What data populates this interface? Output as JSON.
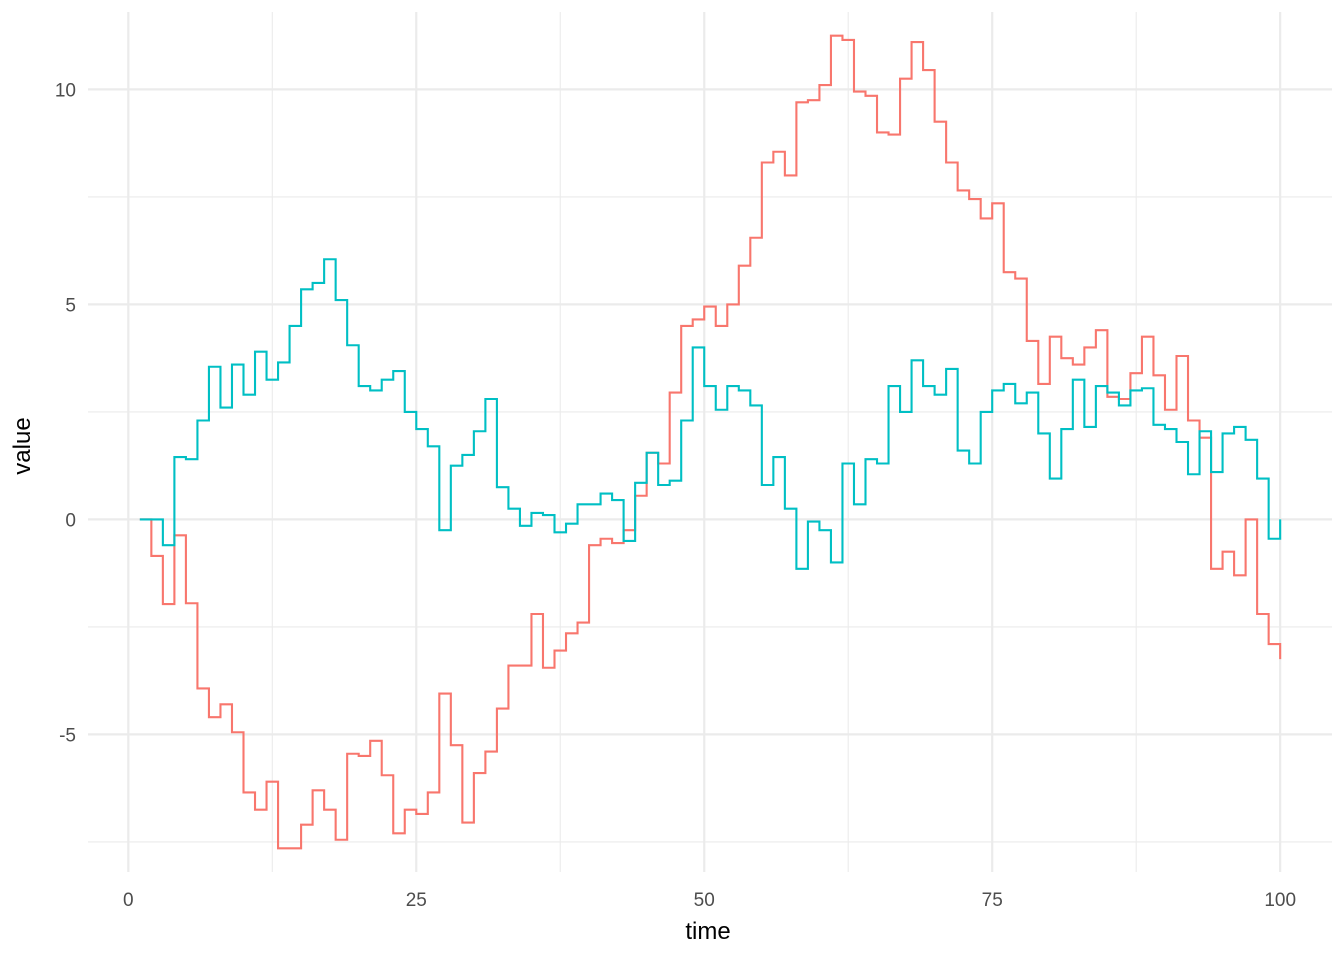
{
  "chart_data": {
    "type": "line",
    "step": true,
    "xlabel": "time",
    "ylabel": "value",
    "xlim": [
      -3.5,
      104.5
    ],
    "ylim": [
      -8.2,
      11.8
    ],
    "x_major_ticks": [
      0,
      25,
      50,
      75,
      100
    ],
    "x_minor_ticks": [
      12.5,
      37.5,
      62.5,
      87.5
    ],
    "y_major_ticks": [
      -5,
      0,
      5,
      10
    ],
    "y_minor_ticks": [
      -7.5,
      -2.5,
      2.5,
      7.5
    ],
    "x_tick_labels": [
      "0",
      "25",
      "50",
      "75",
      "100"
    ],
    "y_tick_labels": [
      "-5",
      "0",
      "5",
      "10"
    ],
    "grid": true,
    "legend": "none",
    "x": [
      1,
      2,
      3,
      4,
      5,
      6,
      7,
      8,
      9,
      10,
      11,
      12,
      13,
      14,
      15,
      16,
      17,
      18,
      19,
      20,
      21,
      22,
      23,
      24,
      25,
      26,
      27,
      28,
      29,
      30,
      31,
      32,
      33,
      34,
      35,
      36,
      37,
      38,
      39,
      40,
      41,
      42,
      43,
      44,
      45,
      46,
      47,
      48,
      49,
      50,
      51,
      52,
      53,
      54,
      55,
      56,
      57,
      58,
      59,
      60,
      61,
      62,
      63,
      64,
      65,
      66,
      67,
      68,
      69,
      70,
      71,
      72,
      73,
      74,
      75,
      76,
      77,
      78,
      79,
      80,
      81,
      82,
      83,
      84,
      85,
      86,
      87,
      88,
      89,
      90,
      91,
      92,
      93,
      94,
      95,
      96,
      97,
      98,
      99,
      100
    ],
    "series": [
      {
        "color": "#F8766D",
        "values": [
          0,
          -0.85,
          -1.97,
          -0.37,
          -1.95,
          -3.93,
          -4.6,
          -4.3,
          -4.95,
          -6.35,
          -6.75,
          -6.1,
          -7.65,
          -7.65,
          -7.1,
          -6.3,
          -6.75,
          -7.45,
          -5.45,
          -5.5,
          -5.15,
          -5.95,
          -7.3,
          -6.75,
          -6.85,
          -6.35,
          -4.05,
          -5.25,
          -7.05,
          -5.9,
          -5.4,
          -4.4,
          -3.4,
          -3.4,
          -2.2,
          -3.45,
          -3.05,
          -2.65,
          -2.4,
          -0.6,
          -0.45,
          -0.55,
          -0.25,
          0.55,
          1.55,
          1.3,
          2.95,
          4.5,
          4.65,
          4.95,
          4.5,
          5.0,
          5.9,
          6.55,
          8.3,
          8.55,
          8.0,
          9.7,
          9.75,
          10.1,
          11.25,
          11.15,
          9.95,
          9.85,
          9.0,
          8.95,
          10.25,
          11.1,
          10.45,
          9.25,
          8.3,
          7.65,
          7.45,
          7.0,
          7.35,
          5.75,
          5.6,
          4.15,
          3.15,
          4.25,
          3.75,
          3.6,
          4.0,
          4.4,
          2.85,
          2.8,
          3.4,
          4.25,
          3.35,
          2.55,
          3.8,
          2.3,
          1.9,
          -1.15,
          -0.75,
          -1.3,
          0.0,
          -2.2,
          -2.9,
          -3.25
        ]
      },
      {
        "color": "#00BFC4",
        "values": [
          0,
          0,
          -0.6,
          1.45,
          1.4,
          2.3,
          3.55,
          2.6,
          3.6,
          2.9,
          3.9,
          3.25,
          3.65,
          4.5,
          5.35,
          5.5,
          6.05,
          5.1,
          4.05,
          3.1,
          3.0,
          3.25,
          3.45,
          2.5,
          2.1,
          1.7,
          -0.25,
          1.25,
          1.5,
          2.05,
          2.8,
          0.75,
          0.25,
          -0.15,
          0.15,
          0.1,
          -0.3,
          -0.1,
          0.35,
          0.35,
          0.6,
          0.45,
          -0.5,
          0.85,
          1.55,
          0.8,
          0.9,
          2.3,
          4.0,
          3.1,
          2.55,
          3.1,
          3.0,
          2.65,
          0.8,
          1.45,
          0.25,
          -1.15,
          -0.05,
          -0.25,
          -1.0,
          1.3,
          0.35,
          1.4,
          1.3,
          3.1,
          2.5,
          3.7,
          3.1,
          2.9,
          3.5,
          1.6,
          1.3,
          2.5,
          3.0,
          3.15,
          2.7,
          2.95,
          2.0,
          0.95,
          2.1,
          3.25,
          2.15,
          3.1,
          2.95,
          2.65,
          3.0,
          3.05,
          2.2,
          2.1,
          1.8,
          1.05,
          2.05,
          1.1,
          2.0,
          2.15,
          1.85,
          0.95,
          -0.45,
          0.0
        ]
      }
    ]
  }
}
